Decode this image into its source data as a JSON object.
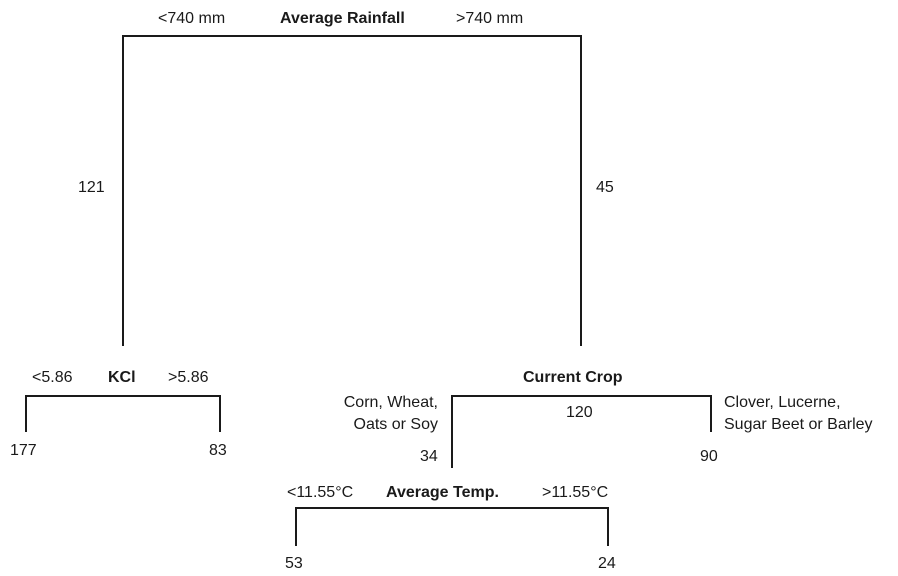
{
  "root": {
    "split_name": "Average Rainfall",
    "left_condition": "<740 mm",
    "right_condition": ">740 mm",
    "left_value": "121",
    "right_value": "45"
  },
  "kcl": {
    "split_name": "KCl",
    "left_condition": "<5.86",
    "right_condition": ">5.86",
    "left_leaf": "177",
    "right_leaf": "83"
  },
  "crop": {
    "split_name": "Current Crop",
    "node_value": "120",
    "left_condition_line1": "Corn, Wheat,",
    "left_condition_line2": "Oats or Soy",
    "right_condition_line1": "Clover, Lucerne,",
    "right_condition_line2": "Sugar Beet or Barley",
    "left_value": "34",
    "right_leaf": "90"
  },
  "temp": {
    "split_name": "Average Temp.",
    "left_condition": "<11.55°C",
    "right_condition": ">11.55°C",
    "left_leaf": "53",
    "right_leaf": "24"
  }
}
